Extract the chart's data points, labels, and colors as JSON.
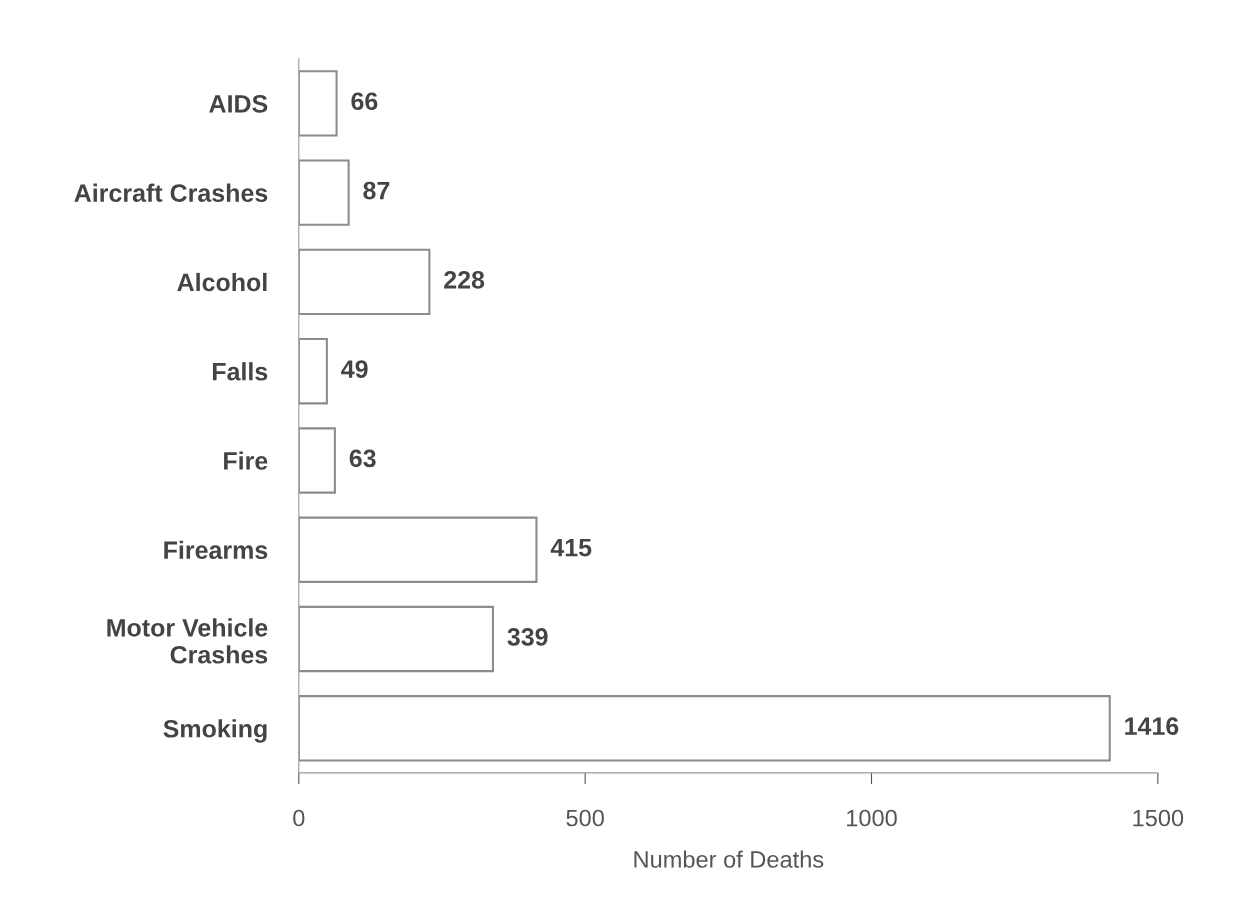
{
  "chart_data": {
    "type": "bar",
    "orientation": "horizontal",
    "xlabel": "Number of Deaths",
    "categories": [
      "AIDS",
      "Aircraft Crashes",
      "Alcohol",
      "Falls",
      "Fire",
      "Firearms",
      "Motor Vehicle\nCrashes",
      "Smoking"
    ],
    "values": [
      66,
      87,
      228,
      49,
      63,
      415,
      339,
      1416
    ],
    "color": "#ffffff",
    "xlim": [
      0,
      1500
    ],
    "xticks": [
      0,
      500,
      1000,
      1500
    ],
    "data_labels": true,
    "grid": false
  }
}
